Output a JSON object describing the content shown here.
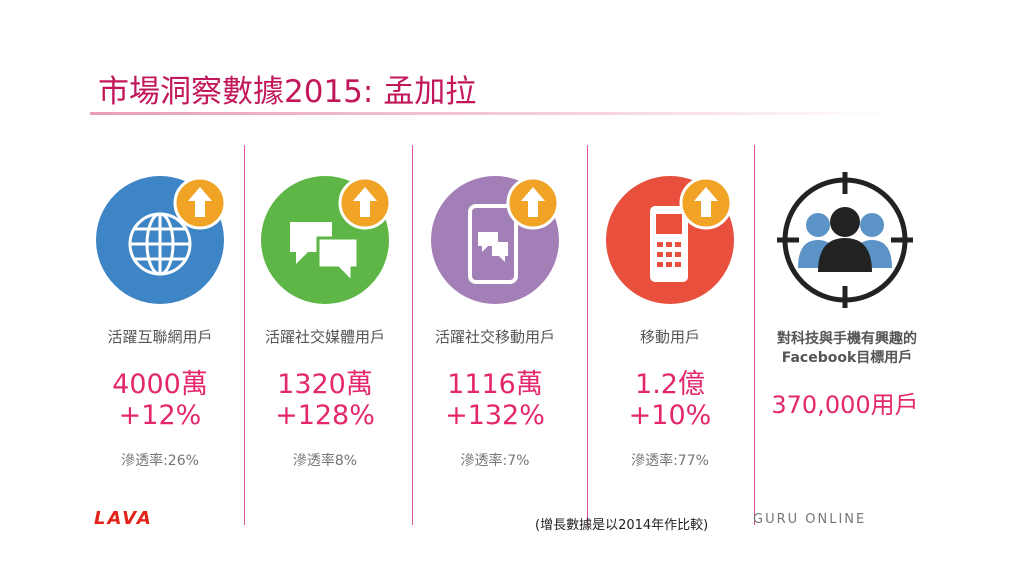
{
  "title": "市場洞察數據2015: 孟加拉",
  "columns": [
    {
      "label": "活躍互聯網用戶",
      "value": "4000萬",
      "growth": "+12%",
      "penetration": "滲透率:26%"
    },
    {
      "label": "活躍社交媒體用戶",
      "value": "1320萬",
      "growth": "+128%",
      "penetration": "滲透率8%"
    },
    {
      "label": "活躍社交移動用戶",
      "value": "1116萬",
      "growth": "+132%",
      "penetration": "滲透率:7%"
    },
    {
      "label": "移動用戶",
      "value": "1.2億",
      "growth": "+10%",
      "penetration": "滲透率:77%"
    }
  ],
  "target": {
    "label": "對科技與手機有興趣的Facebook目標用戶",
    "value": "370,000用戶"
  },
  "footnote": "(增長數據是以2014年作比較)",
  "logos": {
    "left": "LAVA",
    "right": "GURU ONLINE"
  }
}
